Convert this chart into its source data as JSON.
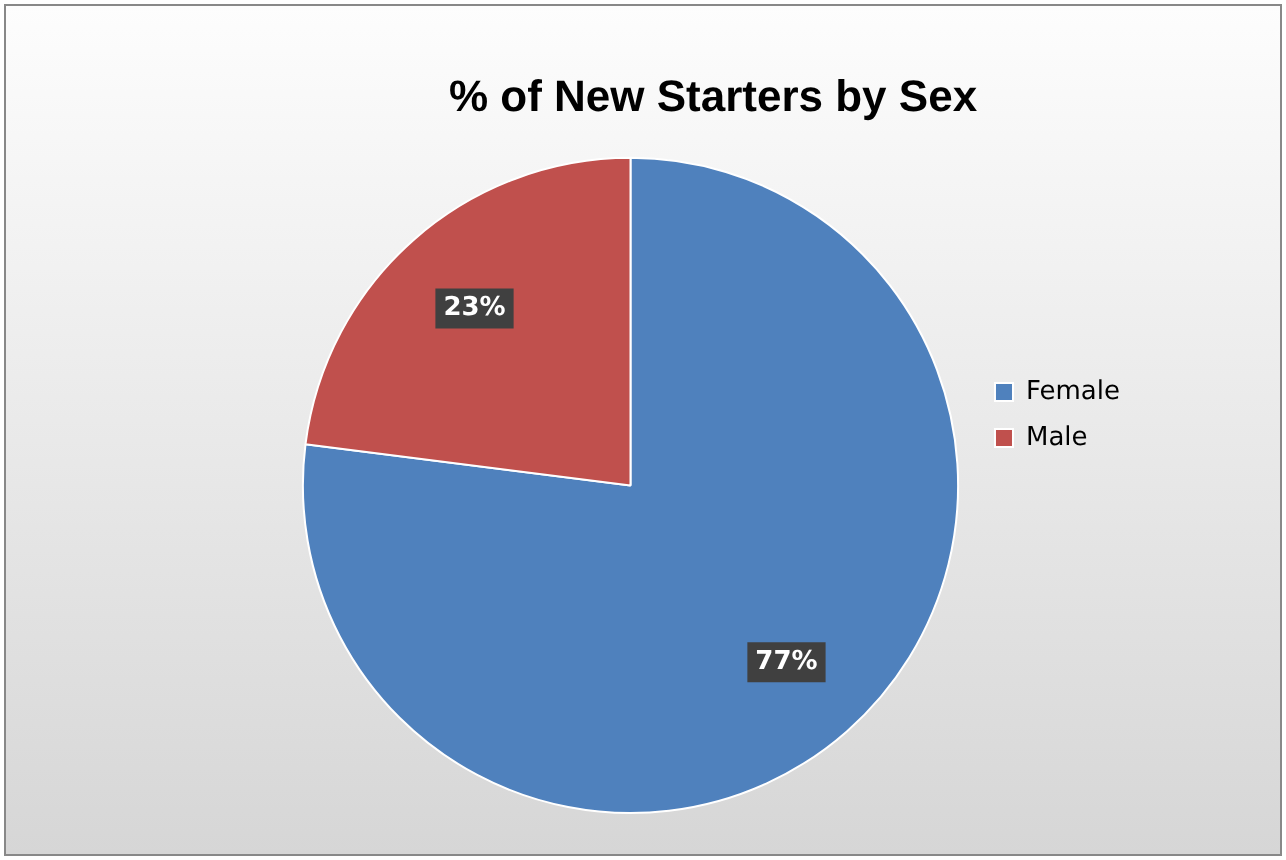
{
  "chart_data": {
    "type": "pie",
    "title": "% of New Starters by Sex",
    "categories": [
      "Female",
      "Male"
    ],
    "values": [
      77,
      23
    ],
    "colors": [
      "#4f81bd",
      "#c0504d"
    ],
    "value_labels": [
      "77%",
      "23%"
    ],
    "legend": "right"
  }
}
